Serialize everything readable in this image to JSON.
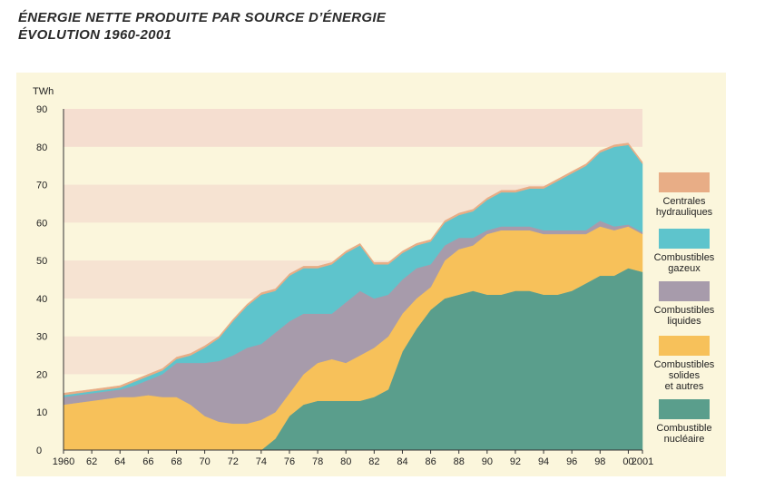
{
  "header": {
    "title_line1": "ÉNERGIE NETTE PRODUITE PAR SOURCE D’ÉNERGIE",
    "title_line2": "ÉVOLUTION 1960-2001"
  },
  "chart_data": {
    "type": "area",
    "stacked": true,
    "ylabel": "TWh",
    "ylim": [
      0,
      90
    ],
    "yticks": [
      0,
      10,
      20,
      30,
      40,
      50,
      60,
      70,
      80,
      90
    ],
    "xlim": [
      1960,
      2001
    ],
    "xtick_labels": [
      {
        "x": 1960,
        "label": "1960"
      },
      {
        "x": 1962,
        "label": "62"
      },
      {
        "x": 1964,
        "label": "64"
      },
      {
        "x": 1966,
        "label": "66"
      },
      {
        "x": 1968,
        "label": "68"
      },
      {
        "x": 1970,
        "label": "70"
      },
      {
        "x": 1972,
        "label": "72"
      },
      {
        "x": 1974,
        "label": "74"
      },
      {
        "x": 1976,
        "label": "76"
      },
      {
        "x": 1978,
        "label": "78"
      },
      {
        "x": 1980,
        "label": "80"
      },
      {
        "x": 1982,
        "label": "82"
      },
      {
        "x": 1984,
        "label": "84"
      },
      {
        "x": 1986,
        "label": "86"
      },
      {
        "x": 1988,
        "label": "88"
      },
      {
        "x": 1990,
        "label": "90"
      },
      {
        "x": 1992,
        "label": "92"
      },
      {
        "x": 1994,
        "label": "94"
      },
      {
        "x": 1996,
        "label": "96"
      },
      {
        "x": 1998,
        "label": "98"
      },
      {
        "x": 2000,
        "label": "00"
      },
      {
        "x": 2001,
        "label": "2001"
      }
    ],
    "legend_position": "right",
    "x": [
      1960,
      1961,
      1962,
      1963,
      1964,
      1965,
      1966,
      1967,
      1968,
      1969,
      1970,
      1971,
      1972,
      1973,
      1974,
      1975,
      1976,
      1977,
      1978,
      1979,
      1980,
      1981,
      1982,
      1983,
      1984,
      1985,
      1986,
      1987,
      1988,
      1989,
      1990,
      1991,
      1992,
      1993,
      1994,
      1995,
      1996,
      1997,
      1998,
      1999,
      2000,
      2001
    ],
    "series": [
      {
        "name": "Combustible nucléaire",
        "color": "#5a9e8c",
        "values": [
          0,
          0,
          0,
          0,
          0,
          0,
          0,
          0,
          0,
          0,
          0,
          0,
          0,
          0,
          0,
          3,
          9,
          12,
          13,
          13,
          13,
          13,
          14,
          16,
          26,
          32,
          37,
          40,
          41,
          42,
          41,
          41,
          42,
          42,
          41,
          41,
          42,
          44,
          46,
          46,
          48,
          47
        ]
      },
      {
        "name": "Combustibles solides et autres",
        "color": "#f7c15a",
        "values": [
          12,
          12.5,
          13,
          13.5,
          14,
          14,
          14.5,
          14,
          14,
          12,
          9,
          7.5,
          7,
          7,
          8,
          7,
          6,
          8,
          10,
          11,
          10,
          12,
          13,
          14,
          10,
          8,
          6,
          10,
          12,
          12,
          16,
          17,
          16,
          16,
          16,
          16,
          15,
          13,
          13,
          12,
          11,
          10
        ]
      },
      {
        "name": "Combustibles liquides",
        "color": "#a79bab",
        "values": [
          2,
          2,
          2,
          2,
          2,
          3,
          4,
          6,
          9,
          11,
          14,
          16,
          18,
          20,
          20,
          21,
          19,
          16,
          13,
          12,
          16,
          17,
          13,
          11,
          9,
          8,
          6,
          4,
          3,
          2,
          1,
          1,
          1,
          1,
          1,
          1,
          1,
          1,
          1.5,
          1,
          0.5,
          0.5
        ]
      },
      {
        "name": "Combustibles gazeux",
        "color": "#5ec4cc",
        "values": [
          0.5,
          0.5,
          0.5,
          0.5,
          0.5,
          1,
          1,
          1,
          1,
          2,
          4,
          6,
          9,
          11,
          13,
          11,
          12,
          12,
          12,
          13,
          13,
          12,
          9,
          8,
          7,
          6,
          6,
          6,
          6,
          7,
          8,
          9,
          9,
          10,
          11,
          13,
          15,
          17,
          18,
          21,
          21,
          18
        ]
      },
      {
        "name": "Centrales hydrauliques",
        "color": "#e8ad86",
        "values": [
          0.5,
          0.5,
          0.5,
          0.5,
          0.5,
          0.5,
          0.5,
          0.5,
          0.5,
          0.5,
          0.5,
          0.5,
          0.5,
          0.5,
          0.5,
          0.5,
          0.5,
          0.5,
          0.5,
          0.5,
          0.5,
          0.5,
          0.5,
          0.5,
          0.5,
          0.5,
          0.5,
          0.5,
          0.5,
          0.5,
          0.5,
          0.5,
          0.5,
          0.5,
          0.5,
          0.5,
          0.5,
          0.5,
          0.5,
          0.5,
          0.5,
          0.5
        ]
      }
    ],
    "legend": [
      {
        "label_lines": [
          "Centrales",
          "hydrauliques"
        ],
        "color": "#e8ad86"
      },
      {
        "label_lines": [
          "Combustibles",
          "gazeux"
        ],
        "color": "#5ec4cc"
      },
      {
        "label_lines": [
          "Combustibles",
          "liquides"
        ],
        "color": "#a79bab"
      },
      {
        "label_lines": [
          "Combustibles",
          "solides",
          "et autres"
        ],
        "color": "#f7c15a"
      },
      {
        "label_lines": [
          "Combustible",
          "nucléaire"
        ],
        "color": "#5a9e8c"
      }
    ]
  }
}
